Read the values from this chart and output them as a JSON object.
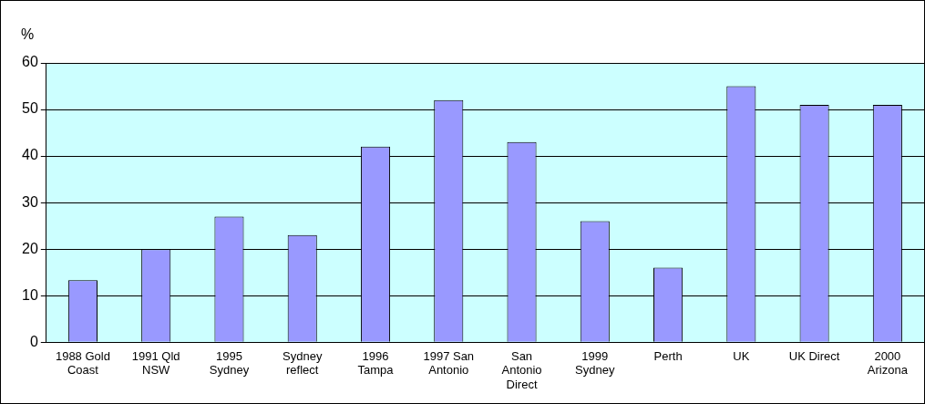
{
  "chart_data": {
    "type": "bar",
    "ylabel": "%",
    "categories": [
      "1988 Gold Coast",
      "1991 Qld NSW",
      "1995 Sydney",
      "Sydney reflect",
      "1996 Tampa",
      "1997 San Antonio",
      "San Antonio Direct",
      "1999 Sydney",
      "Perth",
      "UK",
      "UK Direct",
      "2000 Arizona"
    ],
    "values": [
      13.3,
      20,
      27,
      23,
      42,
      52,
      43,
      26,
      16,
      55,
      51,
      51
    ],
    "color": "#9999ff",
    "ylim": [
      0,
      60
    ],
    "yticks": [
      0,
      10,
      20,
      30,
      40,
      50,
      60
    ],
    "grid": "y",
    "legend": false
  }
}
